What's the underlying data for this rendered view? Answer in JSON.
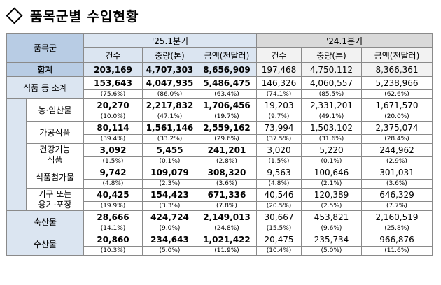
{
  "title": "품목군별 수입현황",
  "header": {
    "category": "품목군",
    "period_current": "'25.1분기",
    "period_previous": "'24.1분기",
    "columns": [
      "건수",
      "중량(톤)",
      "금액(천달러)"
    ]
  },
  "total": {
    "label": "합계",
    "current": [
      "203,169",
      "4,707,303",
      "8,656,909"
    ],
    "previous": [
      "197,468",
      "4,750,112",
      "8,366,361"
    ]
  },
  "rows": [
    {
      "label": "식품 등 소계",
      "current": [
        "153,643",
        "4,047,935",
        "5,486,475"
      ],
      "current_pct": [
        "(75.6%)",
        "(86.0%)",
        "(63.4%)"
      ],
      "previous": [
        "146,326",
        "4,060,557",
        "5,238,966"
      ],
      "previous_pct": [
        "(74.1%)",
        "(85.5%)",
        "(62.6%)"
      ]
    },
    {
      "label": "농·임산물",
      "current": [
        "20,270",
        "2,217,832",
        "1,706,456"
      ],
      "current_pct": [
        "(10.0%)",
        "(47.1%)",
        "(19.7%)"
      ],
      "previous": [
        "19,203",
        "2,331,201",
        "1,671,570"
      ],
      "previous_pct": [
        "(9.7%)",
        "(49.1%)",
        "(20.0%)"
      ]
    },
    {
      "label": "가공식품",
      "current": [
        "80,114",
        "1,561,146",
        "2,559,162"
      ],
      "current_pct": [
        "(39.4%)",
        "(33.2%)",
        "(29.6%)"
      ],
      "previous": [
        "73,994",
        "1,503,102",
        "2,375,074"
      ],
      "previous_pct": [
        "(37.5%)",
        "(31.6%)",
        "(28.4%)"
      ]
    },
    {
      "label_line1": "건강기능",
      "label_line2": "식품",
      "current": [
        "3,092",
        "5,455",
        "241,201"
      ],
      "current_pct": [
        "(1.5%)",
        "(0.1%)",
        "(2.8%)"
      ],
      "previous": [
        "3,020",
        "5,220",
        "244,962"
      ],
      "previous_pct": [
        "(1.5%)",
        "(0.1%)",
        "(2.9%)"
      ]
    },
    {
      "label": "식품첨가물",
      "current": [
        "9,742",
        "109,079",
        "308,320"
      ],
      "current_pct": [
        "(4.8%)",
        "(2.3%)",
        "(3.6%)"
      ],
      "previous": [
        "9,563",
        "100,646",
        "301,031"
      ],
      "previous_pct": [
        "(4.8%)",
        "(2.1%)",
        "(3.6%)"
      ]
    },
    {
      "label_line1": "기구 또는",
      "label_line2": "용기·포장",
      "current": [
        "40,425",
        "154,423",
        "671,336"
      ],
      "current_pct": [
        "(19.9%)",
        "(3.3%)",
        "(7.8%)"
      ],
      "previous": [
        "40,546",
        "120,389",
        "646,329"
      ],
      "previous_pct": [
        "(20.5%)",
        "(2.5%)",
        "(7.7%)"
      ]
    },
    {
      "label": "축산물",
      "current": [
        "28,666",
        "424,724",
        "2,149,013"
      ],
      "current_pct": [
        "(14.1%)",
        "(9.0%)",
        "(24.8%)"
      ],
      "previous": [
        "30,667",
        "453,821",
        "2,160,519"
      ],
      "previous_pct": [
        "(15.5%)",
        "(9.6%)",
        "(25.8%)"
      ]
    },
    {
      "label": "수산물",
      "current": [
        "20,860",
        "234,643",
        "1,021,422"
      ],
      "current_pct": [
        "(10.3%)",
        "(5.0%)",
        "(11.9%)"
      ],
      "previous": [
        "20,475",
        "235,734",
        "966,876"
      ],
      "previous_pct": [
        "(10.4%)",
        "(5.0%)",
        "(11.6%)"
      ]
    }
  ]
}
